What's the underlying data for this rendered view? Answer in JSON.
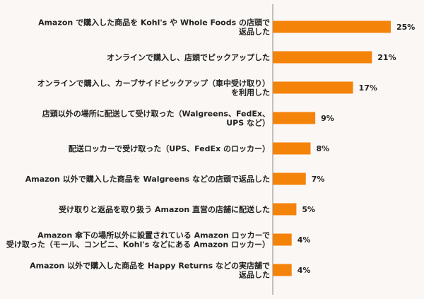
{
  "chart_data": {
    "type": "bar",
    "orientation": "horizontal",
    "title": "",
    "xlabel": "",
    "ylabel": "",
    "xlim": [
      0,
      25
    ],
    "unit": "%",
    "grid": false,
    "legend": "none",
    "bar_color": "#f4830a",
    "categories": [
      [
        "Amazon で購入した商品を Kohl's や Whole Foods の店頭で",
        "返品した"
      ],
      [
        "オンラインで購入し、店頭でピックアップした"
      ],
      [
        "オンラインで購入し、カーブサイドピックアップ（車中受け取り）",
        "を利用した"
      ],
      [
        "店頭以外の場所に配送して受け取った（Walgreens、FedEx、",
        "UPS など）"
      ],
      [
        "配送ロッカーで受け取った（UPS、FedEx のロッカー）"
      ],
      [
        "Amazon 以外で購入した商品を Walgreens などの店頭で返品した"
      ],
      [
        "受け取りと返品を取り扱う Amazon 直営の店舗に配送した"
      ],
      [
        "Amazon 傘下の場所以外に設置されている Amazon ロッカーで",
        "受け取った（モール、コンビニ、Kohl's などにある Amazon ロッカー）"
      ],
      [
        "Amazon 以外で購入した商品を Happy Returns などの実店舗で",
        "返品した"
      ]
    ],
    "values": [
      25,
      21,
      17,
      9,
      8,
      7,
      5,
      4,
      4
    ],
    "value_labels": [
      "25%",
      "21%",
      "17%",
      "9%",
      "8%",
      "7%",
      "5%",
      "4%",
      "4%"
    ]
  }
}
